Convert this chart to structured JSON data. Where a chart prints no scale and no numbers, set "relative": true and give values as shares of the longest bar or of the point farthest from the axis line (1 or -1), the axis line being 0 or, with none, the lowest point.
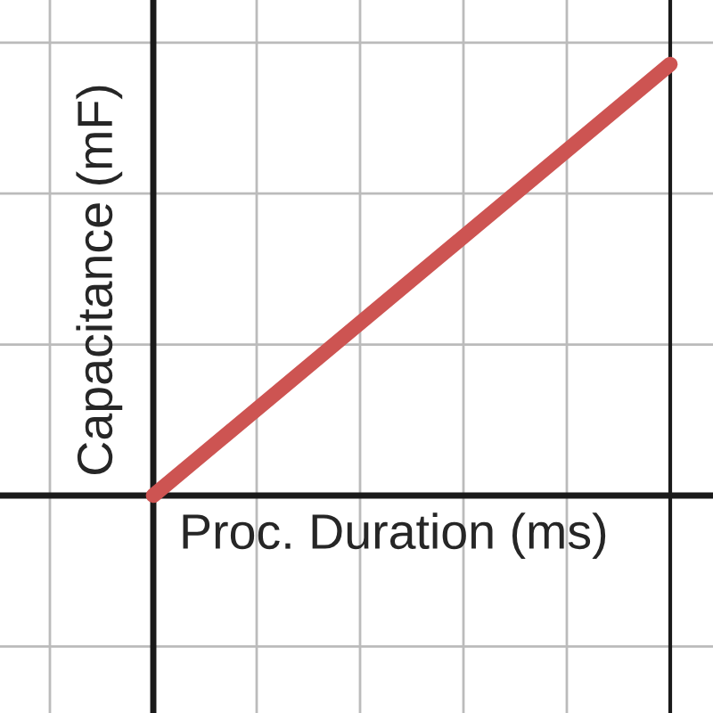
{
  "chart_data": {
    "type": "line",
    "relative": true,
    "xlabel": "Proc. Duration (ms)",
    "ylabel": "Capacitance (mF)",
    "categories": [
      null,
      null
    ],
    "series": [
      {
        "color": "#cd5452",
        "values": [
          0,
          1
        ]
      }
    ],
    "grid": true,
    "legend": false
  }
}
